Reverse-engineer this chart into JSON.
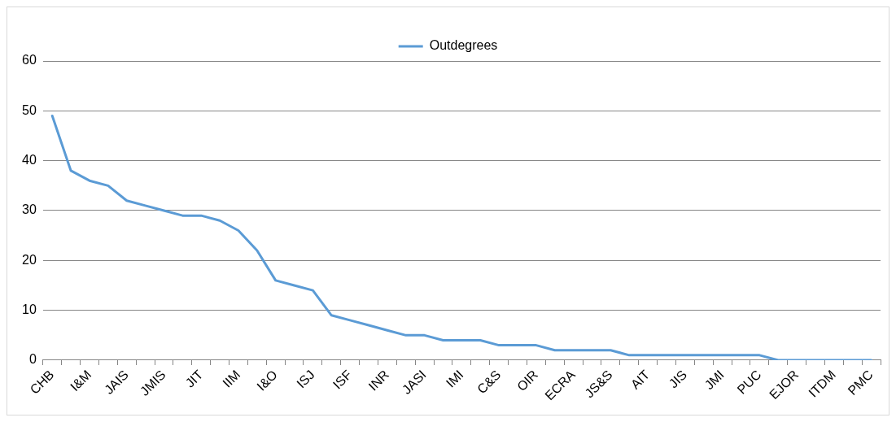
{
  "chart_data": {
    "type": "line",
    "categories": [
      "CHB",
      null,
      "I&M",
      null,
      "JAIS",
      null,
      "JMIS",
      null,
      "JIT",
      null,
      "IIM",
      null,
      "I&O",
      null,
      "ISJ",
      null,
      "ISF",
      null,
      "INR",
      null,
      "JASI",
      null,
      "IMI",
      null,
      "C&S",
      null,
      "OIR",
      null,
      "ECRA",
      null,
      "JS&S",
      null,
      "AIT",
      null,
      "JIS",
      null,
      "JMI",
      null,
      "PUC",
      null,
      "EJOR",
      null,
      "ITDM",
      null,
      "PMC"
    ],
    "series": [
      {
        "name": "Outdegrees",
        "color": "#5b9bd5",
        "values": [
          49,
          38,
          36,
          35,
          32,
          31,
          30,
          29,
          29,
          28,
          26,
          22,
          16,
          15,
          14,
          9,
          8,
          7,
          6,
          5,
          5,
          4,
          4,
          4,
          3,
          3,
          3,
          2,
          2,
          2,
          2,
          1,
          1,
          1,
          1,
          1,
          1,
          1,
          1,
          0,
          0,
          0,
          0,
          0,
          0
        ]
      }
    ],
    "ylim": [
      0,
      60
    ],
    "yticks": [
      0,
      10,
      20,
      30,
      40,
      50,
      60
    ],
    "grid": "y",
    "legend": "top",
    "marker": "none",
    "line_style": "solid"
  }
}
